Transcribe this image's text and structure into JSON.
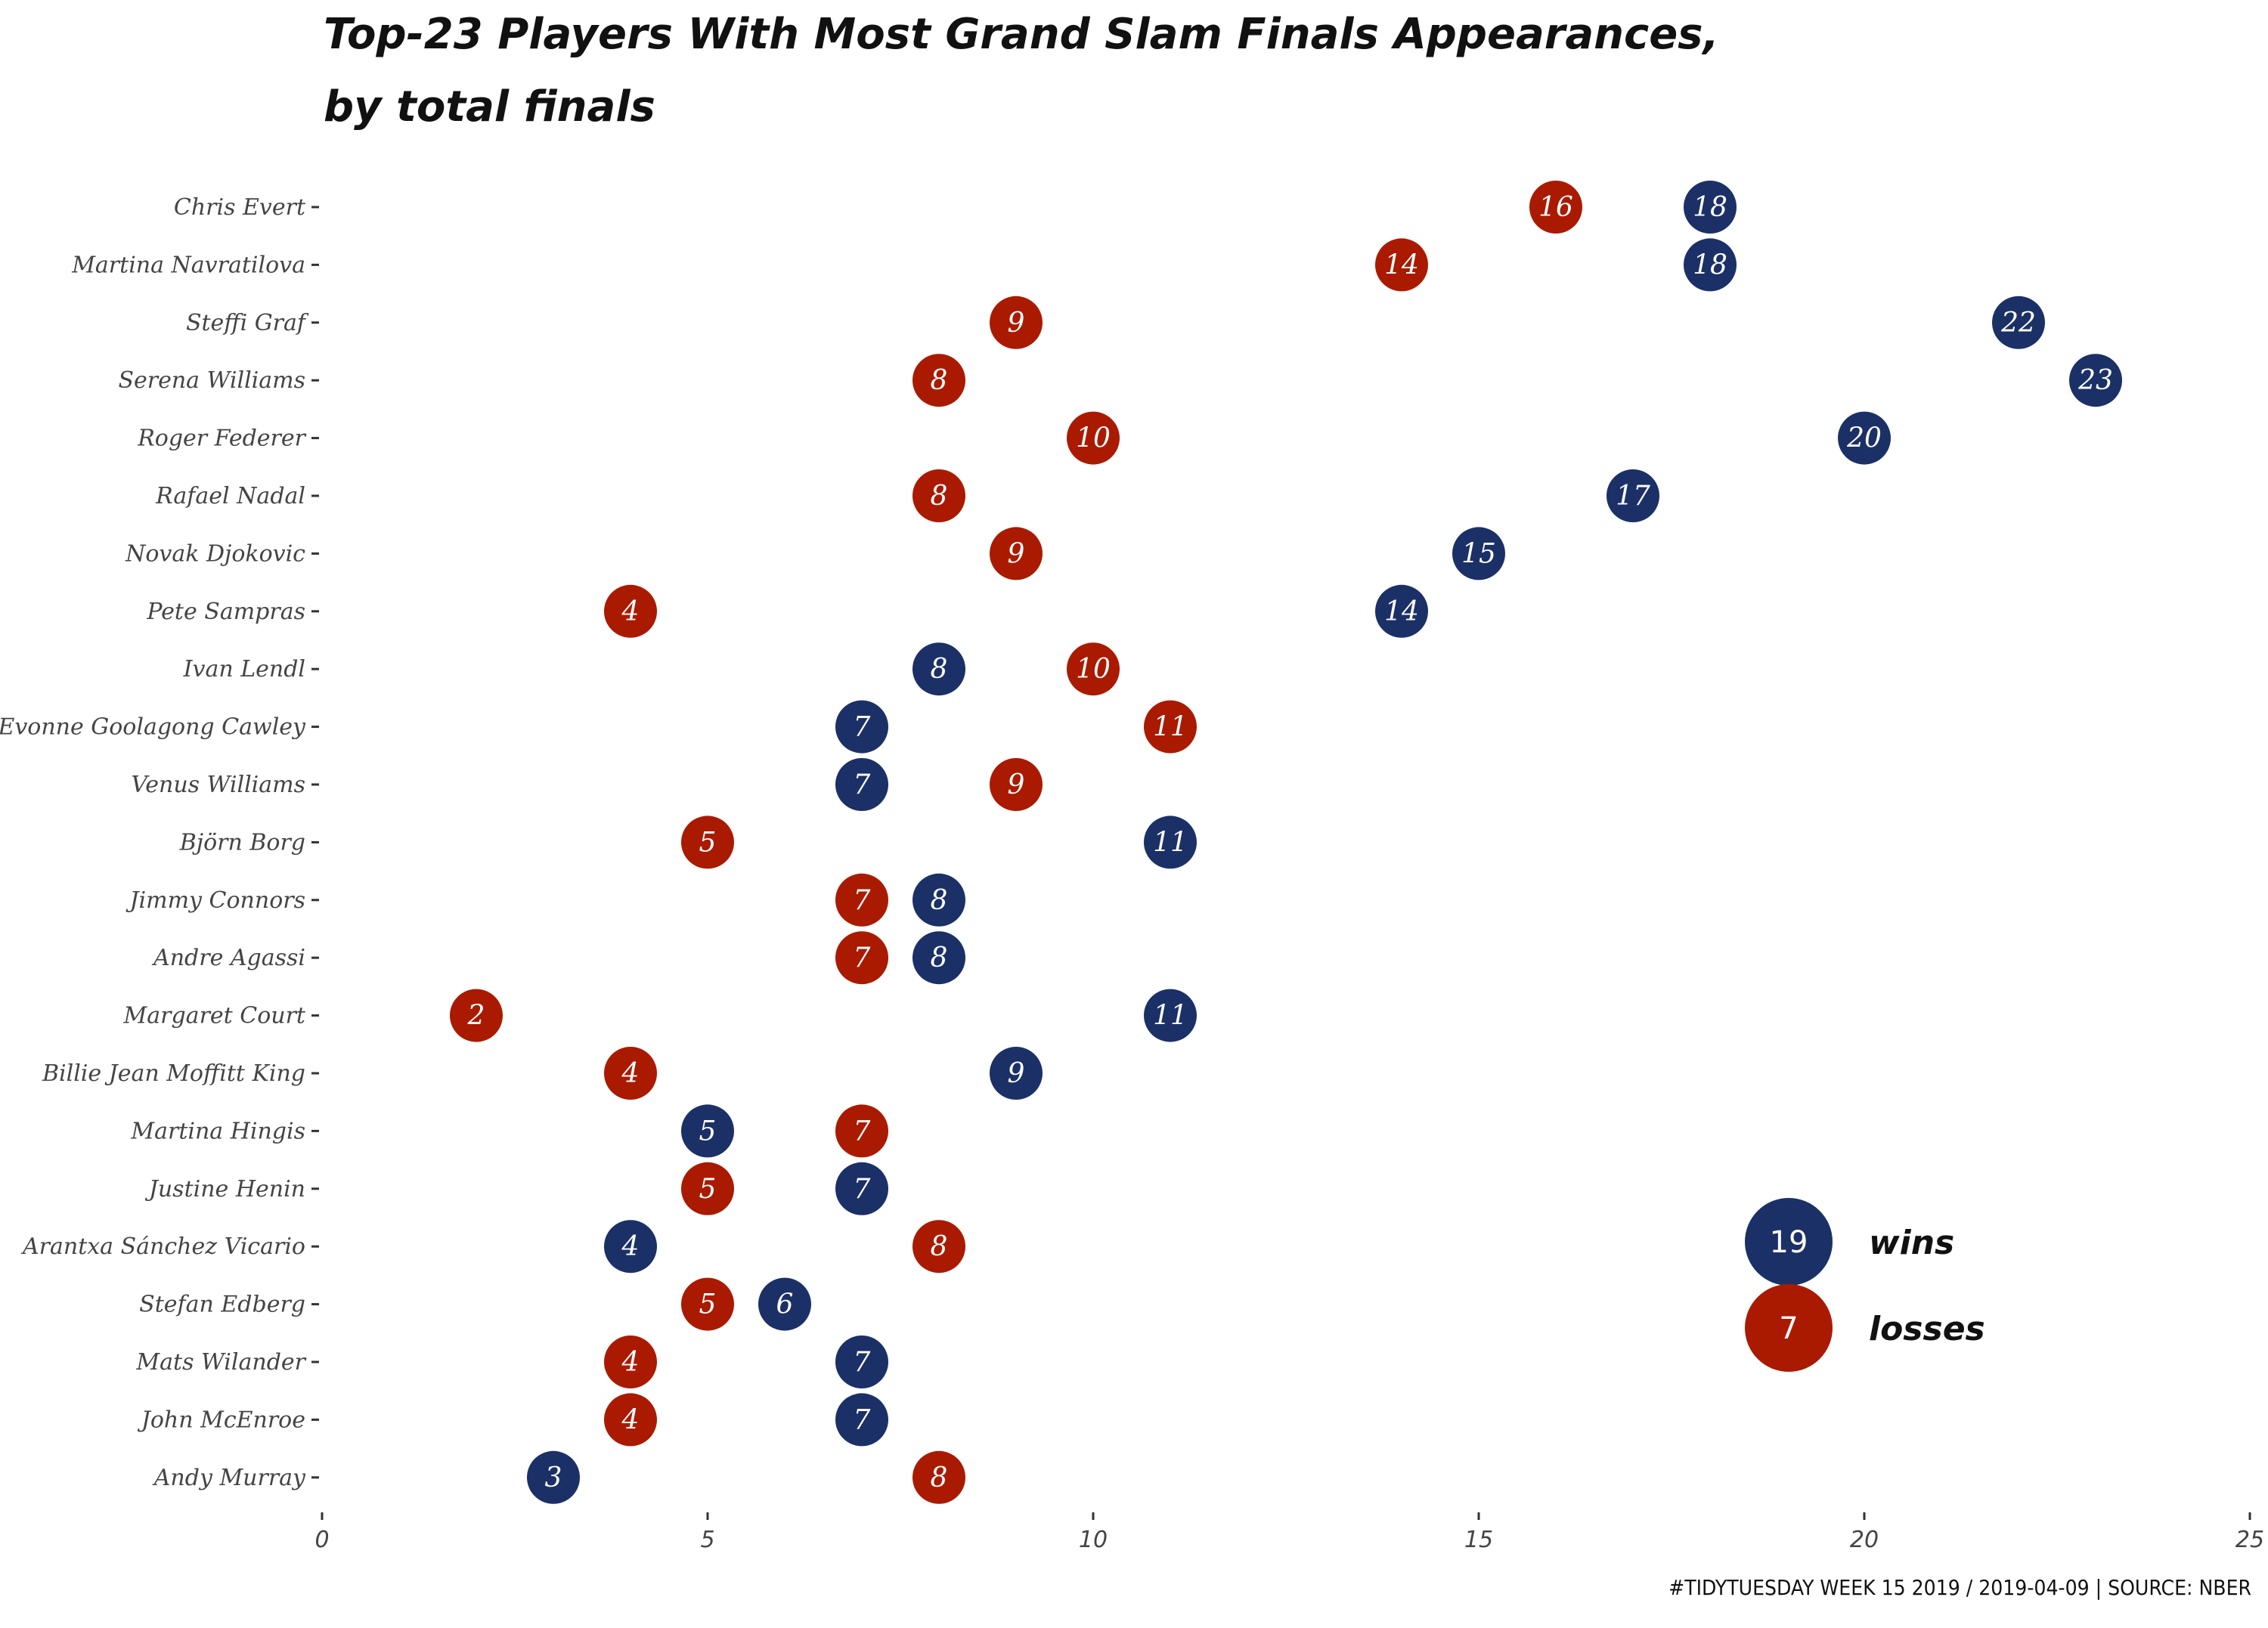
{
  "chart_data": {
    "type": "scatter",
    "title_lines": [
      "Top-23 Players With Most Grand Slam Finals Appearances,",
      "by total finals"
    ],
    "caption": "#TIDYTUESDAY WEEK 15 2019 / 2019-04-09 | SOURCE: NBER",
    "xlim": [
      0,
      25
    ],
    "x_ticks": [
      0,
      5,
      10,
      15,
      20,
      25
    ],
    "grid": false,
    "legend": {
      "placement": "bottom-right",
      "items": [
        {
          "key": "wins",
          "label": "wins",
          "sample": "19",
          "color": "#1b3066"
        },
        {
          "key": "losses",
          "label": "losses",
          "sample": "7",
          "color": "#aa1a00"
        }
      ]
    },
    "series_colors": {
      "wins": "#1b3066",
      "losses": "#aa1a00"
    },
    "players": [
      {
        "name": "Chris Evert",
        "wins": 18,
        "losses": 16
      },
      {
        "name": "Martina Navratilova",
        "wins": 18,
        "losses": 14
      },
      {
        "name": "Steffi Graf",
        "wins": 22,
        "losses": 9
      },
      {
        "name": "Serena Williams",
        "wins": 23,
        "losses": 8
      },
      {
        "name": "Roger Federer",
        "wins": 20,
        "losses": 10
      },
      {
        "name": "Rafael Nadal",
        "wins": 17,
        "losses": 8
      },
      {
        "name": "Novak Djokovic",
        "wins": 15,
        "losses": 9
      },
      {
        "name": "Pete Sampras",
        "wins": 14,
        "losses": 4
      },
      {
        "name": "Ivan Lendl",
        "wins": 8,
        "losses": 10
      },
      {
        "name": "Evonne Goolagong Cawley",
        "wins": 7,
        "losses": 11
      },
      {
        "name": "Venus Williams",
        "wins": 7,
        "losses": 9
      },
      {
        "name": "Björn Borg",
        "wins": 11,
        "losses": 5
      },
      {
        "name": "Jimmy Connors",
        "wins": 8,
        "losses": 7
      },
      {
        "name": "Andre Agassi",
        "wins": 8,
        "losses": 7
      },
      {
        "name": "Margaret Court",
        "wins": 11,
        "losses": 2
      },
      {
        "name": "Billie Jean Moffitt King",
        "wins": 9,
        "losses": 4
      },
      {
        "name": "Martina Hingis",
        "wins": 5,
        "losses": 7
      },
      {
        "name": "Justine Henin",
        "wins": 7,
        "losses": 5
      },
      {
        "name": "Arantxa Sánchez Vicario",
        "wins": 4,
        "losses": 8
      },
      {
        "name": "Stefan Edberg",
        "wins": 6,
        "losses": 5
      },
      {
        "name": "Mats Wilander",
        "wins": 7,
        "losses": 4
      },
      {
        "name": "John McEnroe",
        "wins": 7,
        "losses": 4
      },
      {
        "name": "Andy Murray",
        "wins": 3,
        "losses": 8
      }
    ]
  }
}
